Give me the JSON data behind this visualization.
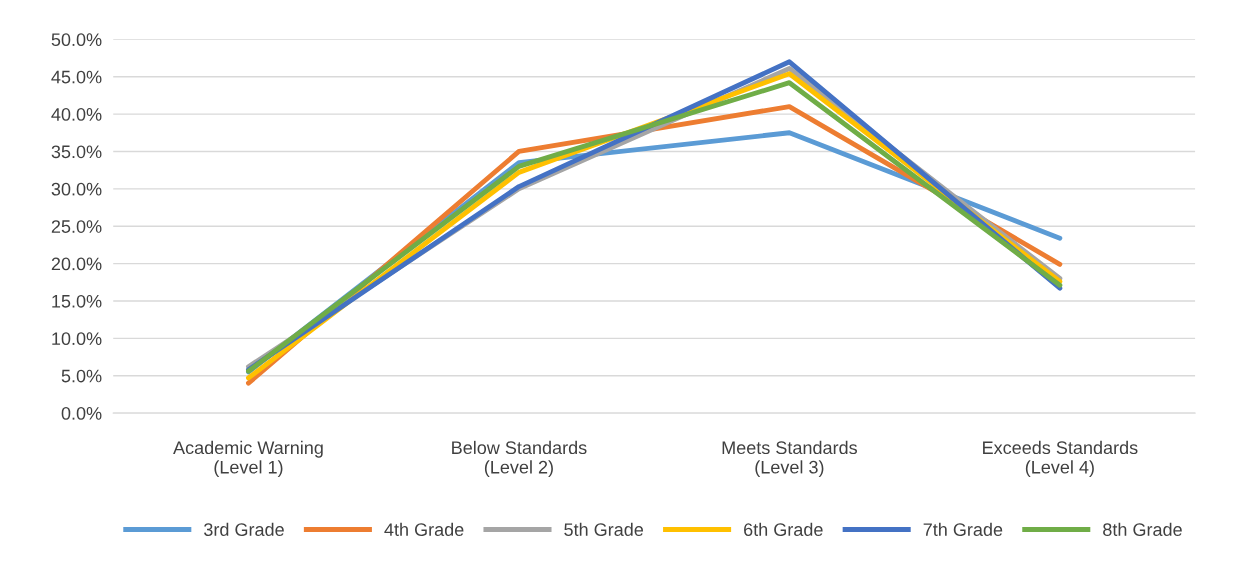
{
  "chart_data": {
    "type": "line",
    "categories": [
      "Academic Warning\n(Level 1)",
      "Below Standards\n(Level 2)",
      "Meets Standards\n(Level 3)",
      "Exceeds Standards\n(Level 4)"
    ],
    "series": [
      {
        "name": "3rd Grade",
        "color": "#5b9bd5",
        "values": [
          5.5,
          33.5,
          37.5,
          23.4
        ]
      },
      {
        "name": "4th Grade",
        "color": "#ed7d31",
        "values": [
          4.0,
          35.0,
          41.0,
          19.9
        ]
      },
      {
        "name": "5th Grade",
        "color": "#a5a5a5",
        "values": [
          6.2,
          30.0,
          46.1,
          18.0
        ]
      },
      {
        "name": "6th Grade",
        "color": "#ffc000",
        "values": [
          4.7,
          32.2,
          45.4,
          17.6
        ]
      },
      {
        "name": "7th Grade",
        "color": "#4472c4",
        "values": [
          5.8,
          30.3,
          47.0,
          16.7
        ]
      },
      {
        "name": "8th Grade",
        "color": "#70ad47",
        "values": [
          5.6,
          33.0,
          44.2,
          17.1
        ]
      }
    ],
    "ylim": [
      0,
      50
    ],
    "yticks": [
      {
        "value": 0,
        "label": "0.0%"
      },
      {
        "value": 5,
        "label": "5.0%"
      },
      {
        "value": 10,
        "label": "10.0%"
      },
      {
        "value": 15,
        "label": "15.0%"
      },
      {
        "value": 20,
        "label": "20.0%"
      },
      {
        "value": 25,
        "label": "25.0%"
      },
      {
        "value": 30,
        "label": "30.0%"
      },
      {
        "value": 35,
        "label": "35.0%"
      },
      {
        "value": 40,
        "label": "40.0%"
      },
      {
        "value": 45,
        "label": "45.0%"
      },
      {
        "value": 50,
        "label": "50.0%"
      }
    ],
    "grid": "y",
    "legend": "bottom",
    "marker": "none",
    "line_style": "solid"
  }
}
